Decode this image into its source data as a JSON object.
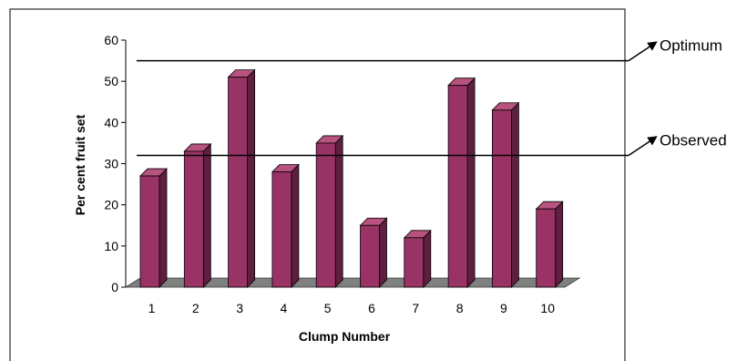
{
  "chart_data": {
    "type": "bar",
    "title": "",
    "xlabel": "Clump Number",
    "ylabel": "Per cent fruit set",
    "categories": [
      "1",
      "2",
      "3",
      "4",
      "5",
      "6",
      "7",
      "8",
      "9",
      "10"
    ],
    "values": [
      27,
      33,
      51,
      28,
      35,
      15,
      12,
      49,
      43,
      19
    ],
    "ylim": [
      0,
      60
    ],
    "yticks": [
      "0",
      "10",
      "20",
      "30",
      "40",
      "50",
      "60"
    ],
    "grid": false,
    "legend": "none",
    "style": "3d-column",
    "reference_lines": [
      {
        "label": "Optimum",
        "value": 55
      },
      {
        "label": "Observed",
        "value": 32
      }
    ],
    "colors": {
      "bar_front": "#993366",
      "bar_side": "#5f1f40",
      "bar_top": "#b8527f",
      "floor": "#808080",
      "axis": "#000000",
      "reference_line": "#000000"
    }
  }
}
